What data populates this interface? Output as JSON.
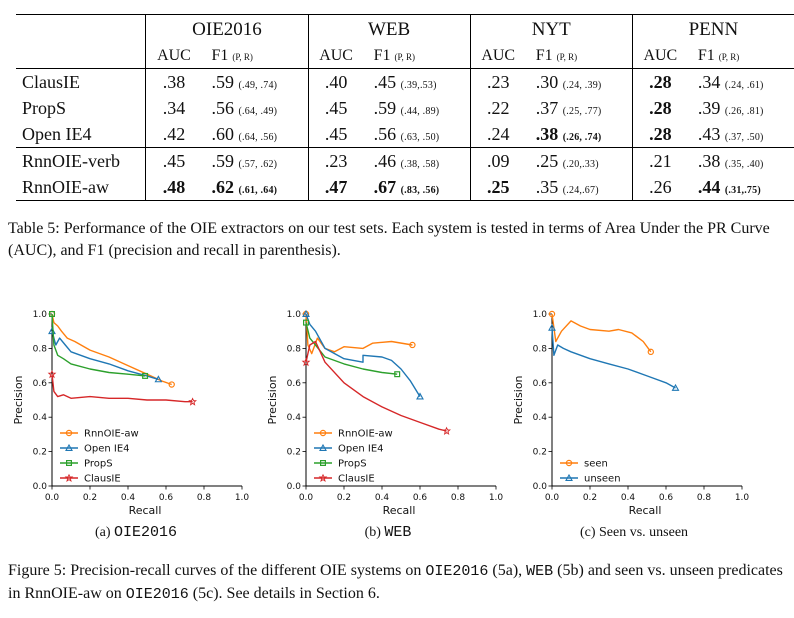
{
  "table": {
    "datasets": [
      "OIE2016",
      "WEB",
      "NYT",
      "PENN"
    ],
    "col_auc": "AUC",
    "col_f1": "F1",
    "col_pr": "(P, R)",
    "groups": [
      [
        {
          "system": "ClausIE",
          "cells": [
            {
              "auc": ".38",
              "f1": ".59",
              "pr": "(.49, .74)"
            },
            {
              "auc": ".40",
              "f1": ".45",
              "pr": "(.39,.53)"
            },
            {
              "auc": ".23",
              "f1": ".30",
              "pr": "(.24, .39)"
            },
            {
              "auc": ".28",
              "f1": ".34",
              "pr": "(.24, .61)",
              "b_auc": true
            }
          ]
        },
        {
          "system": "PropS",
          "cells": [
            {
              "auc": ".34",
              "f1": ".56",
              "pr": "(.64, .49)"
            },
            {
              "auc": ".45",
              "f1": ".59",
              "pr": "(.44, .89)"
            },
            {
              "auc": ".22",
              "f1": ".37",
              "pr": "(.25, .77)"
            },
            {
              "auc": ".28",
              "f1": ".39",
              "pr": "(.26, .81)",
              "b_auc": true
            }
          ]
        },
        {
          "system": "Open IE4",
          "cells": [
            {
              "auc": ".42",
              "f1": ".60",
              "pr": "(.64, .56)"
            },
            {
              "auc": ".45",
              "f1": ".56",
              "pr": "(.63, .50)"
            },
            {
              "auc": ".24",
              "f1": ".38",
              "pr": "(.26, .74)",
              "b_f1": true
            },
            {
              "auc": ".28",
              "f1": ".43",
              "pr": "(.37, .50)",
              "b_auc": true
            }
          ]
        }
      ],
      [
        {
          "system": "RnnOIE-verb",
          "cells": [
            {
              "auc": ".45",
              "f1": ".59",
              "pr": "(.57, .62)"
            },
            {
              "auc": ".23",
              "f1": ".46",
              "pr": "(.38, .58)"
            },
            {
              "auc": ".09",
              "f1": ".25",
              "pr": "(.20,.33)"
            },
            {
              "auc": ".21",
              "f1": ".38",
              "pr": "(.35, .40)"
            }
          ]
        },
        {
          "system": "RnnOIE-aw",
          "cells": [
            {
              "auc": ".48",
              "f1": ".62",
              "pr": "(.61, .64)",
              "b_auc": true,
              "b_f1": true
            },
            {
              "auc": ".47",
              "f1": ".67",
              "pr": "(.83, .56)",
              "b_auc": true,
              "b_f1": true
            },
            {
              "auc": ".25",
              "f1": ".35",
              "pr": "(.24,.67)",
              "b_auc": true
            },
            {
              "auc": ".26",
              "f1": ".44",
              "pr": "(.31,.75)",
              "b_f1": true
            }
          ]
        }
      ]
    ]
  },
  "table_caption": "Table 5: Performance of the OIE extractors on our test sets. Each system is tested in terms of Area Under the PR Curve (AUC), and F1 (precision and recall in parenthesis).",
  "figure_caption": {
    "p1": "Figure 5: Precision-recall curves of the different OIE systems on ",
    "m1": "OIE2016",
    "p2": " (5a), ",
    "m2": "WEB",
    "p3": " (5b) and seen vs. unseen predicates in RnnOIE-aw on ",
    "m3": "OIE2016",
    "p4": " (5c). See details in Section 6."
  },
  "chart_data": [
    {
      "type": "line",
      "subcaption_prefix": "(a) ",
      "subcaption_mono": "OIE2016",
      "xlabel": "Recall",
      "ylabel": "Precision",
      "xlim": [
        0,
        1
      ],
      "ylim": [
        0,
        1
      ],
      "xticks": [
        "0.0",
        "0.2",
        "0.4",
        "0.6",
        "0.8",
        "1.0"
      ],
      "yticks": [
        "0.0",
        "0.2",
        "0.4",
        "0.6",
        "0.8",
        "1.0"
      ],
      "legend_position": "bottom-left",
      "series": [
        {
          "name": "RnnOIE-aw",
          "color": "#ff7f0e",
          "marker": "o",
          "points": [
            [
              0.0,
              1.0
            ],
            [
              0.01,
              0.95
            ],
            [
              0.03,
              0.93
            ],
            [
              0.05,
              0.9
            ],
            [
              0.08,
              0.86
            ],
            [
              0.12,
              0.84
            ],
            [
              0.2,
              0.79
            ],
            [
              0.3,
              0.75
            ],
            [
              0.4,
              0.7
            ],
            [
              0.5,
              0.65
            ],
            [
              0.58,
              0.61
            ],
            [
              0.63,
              0.59
            ]
          ]
        },
        {
          "name": "Open IE4",
          "color": "#1f77b4",
          "marker": "^",
          "points": [
            [
              0.0,
              0.9
            ],
            [
              0.02,
              0.82
            ],
            [
              0.04,
              0.86
            ],
            [
              0.07,
              0.82
            ],
            [
              0.1,
              0.78
            ],
            [
              0.2,
              0.74
            ],
            [
              0.3,
              0.71
            ],
            [
              0.4,
              0.67
            ],
            [
              0.5,
              0.64
            ],
            [
              0.56,
              0.62
            ]
          ]
        },
        {
          "name": "PropS",
          "color": "#2ca02c",
          "marker": "s",
          "points": [
            [
              0.0,
              1.0
            ],
            [
              0.01,
              0.82
            ],
            [
              0.03,
              0.76
            ],
            [
              0.06,
              0.74
            ],
            [
              0.1,
              0.71
            ],
            [
              0.2,
              0.68
            ],
            [
              0.3,
              0.66
            ],
            [
              0.4,
              0.65
            ],
            [
              0.49,
              0.64
            ]
          ]
        },
        {
          "name": "ClausIE",
          "color": "#d62728",
          "marker": "*",
          "points": [
            [
              0.0,
              0.65
            ],
            [
              0.01,
              0.55
            ],
            [
              0.03,
              0.52
            ],
            [
              0.06,
              0.53
            ],
            [
              0.1,
              0.51
            ],
            [
              0.2,
              0.52
            ],
            [
              0.3,
              0.51
            ],
            [
              0.4,
              0.51
            ],
            [
              0.5,
              0.5
            ],
            [
              0.6,
              0.5
            ],
            [
              0.7,
              0.49
            ],
            [
              0.74,
              0.49
            ]
          ]
        }
      ]
    },
    {
      "type": "line",
      "subcaption_prefix": "(b) ",
      "subcaption_mono": "WEB",
      "xlabel": "Recall",
      "ylabel": "Precision",
      "xlim": [
        0,
        1
      ],
      "ylim": [
        0,
        1
      ],
      "xticks": [
        "0.0",
        "0.2",
        "0.4",
        "0.6",
        "0.8",
        "1.0"
      ],
      "yticks": [
        "0.0",
        "0.2",
        "0.4",
        "0.6",
        "0.8",
        "1.0"
      ],
      "legend_position": "bottom-left",
      "series": [
        {
          "name": "RnnOIE-aw",
          "color": "#ff7f0e",
          "marker": "o",
          "points": [
            [
              0.0,
              1.0
            ],
            [
              0.01,
              0.82
            ],
            [
              0.03,
              0.77
            ],
            [
              0.06,
              0.86
            ],
            [
              0.1,
              0.8
            ],
            [
              0.15,
              0.78
            ],
            [
              0.2,
              0.81
            ],
            [
              0.3,
              0.8
            ],
            [
              0.35,
              0.83
            ],
            [
              0.45,
              0.84
            ],
            [
              0.56,
              0.82
            ]
          ]
        },
        {
          "name": "Open IE4",
          "color": "#1f77b4",
          "marker": "^",
          "points": [
            [
              0.0,
              1.0
            ],
            [
              0.02,
              0.94
            ],
            [
              0.05,
              0.9
            ],
            [
              0.1,
              0.8
            ],
            [
              0.2,
              0.74
            ],
            [
              0.3,
              0.72
            ],
            [
              0.3,
              0.76
            ],
            [
              0.4,
              0.75
            ],
            [
              0.45,
              0.73
            ],
            [
              0.5,
              0.68
            ],
            [
              0.55,
              0.61
            ],
            [
              0.6,
              0.52
            ]
          ]
        },
        {
          "name": "PropS",
          "color": "#2ca02c",
          "marker": "s",
          "points": [
            [
              0.0,
              0.95
            ],
            [
              0.02,
              0.86
            ],
            [
              0.05,
              0.82
            ],
            [
              0.1,
              0.75
            ],
            [
              0.2,
              0.71
            ],
            [
              0.3,
              0.68
            ],
            [
              0.4,
              0.66
            ],
            [
              0.48,
              0.65
            ]
          ]
        },
        {
          "name": "ClausIE",
          "color": "#d62728",
          "marker": "*",
          "points": [
            [
              0.0,
              0.72
            ],
            [
              0.02,
              0.82
            ],
            [
              0.05,
              0.84
            ],
            [
              0.1,
              0.72
            ],
            [
              0.2,
              0.6
            ],
            [
              0.3,
              0.52
            ],
            [
              0.4,
              0.46
            ],
            [
              0.5,
              0.41
            ],
            [
              0.6,
              0.37
            ],
            [
              0.7,
              0.33
            ],
            [
              0.74,
              0.32
            ]
          ]
        }
      ]
    },
    {
      "type": "line",
      "subcaption_prefix": "(c) Seen vs. unseen",
      "subcaption_mono": "",
      "xlabel": "Recall",
      "ylabel": "Precision",
      "xlim": [
        0,
        1
      ],
      "ylim": [
        0,
        1
      ],
      "xticks": [
        "0.0",
        "0.2",
        "0.4",
        "0.6",
        "0.8",
        "1.0"
      ],
      "yticks": [
        "0.0",
        "0.2",
        "0.4",
        "0.6",
        "0.8",
        "1.0"
      ],
      "legend_position": "bottom-left",
      "series": [
        {
          "name": "seen",
          "color": "#ff7f0e",
          "marker": "o",
          "points": [
            [
              0.0,
              1.0
            ],
            [
              0.02,
              0.84
            ],
            [
              0.05,
              0.9
            ],
            [
              0.1,
              0.96
            ],
            [
              0.15,
              0.93
            ],
            [
              0.2,
              0.91
            ],
            [
              0.3,
              0.9
            ],
            [
              0.35,
              0.91
            ],
            [
              0.42,
              0.89
            ],
            [
              0.48,
              0.84
            ],
            [
              0.52,
              0.78
            ]
          ]
        },
        {
          "name": "unseen",
          "color": "#1f77b4",
          "marker": "^",
          "points": [
            [
              0.0,
              0.92
            ],
            [
              0.01,
              0.76
            ],
            [
              0.03,
              0.82
            ],
            [
              0.06,
              0.8
            ],
            [
              0.1,
              0.78
            ],
            [
              0.2,
              0.74
            ],
            [
              0.3,
              0.71
            ],
            [
              0.4,
              0.68
            ],
            [
              0.5,
              0.64
            ],
            [
              0.6,
              0.6
            ],
            [
              0.65,
              0.57
            ]
          ]
        }
      ]
    }
  ]
}
